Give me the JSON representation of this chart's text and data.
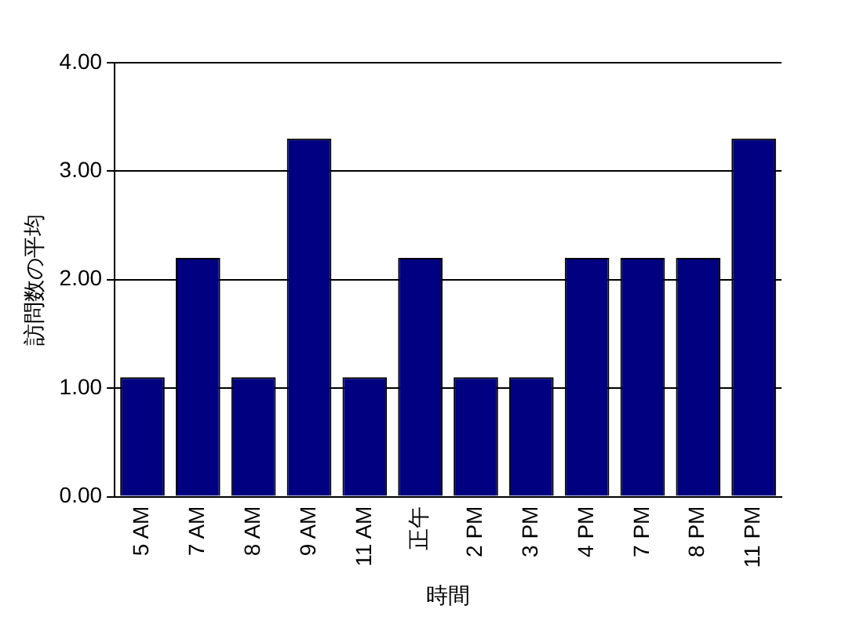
{
  "chart_data": {
    "type": "bar",
    "xlabel": "時間",
    "ylabel": "訪問数の平均",
    "categories": [
      "5 AM",
      "7 AM",
      "8 AM",
      "9 AM",
      "11 AM",
      "正午",
      "2 PM",
      "3 PM",
      "4 PM",
      "7 PM",
      "8 PM",
      "11 PM"
    ],
    "values": [
      1.1,
      2.2,
      1.1,
      3.3,
      1.1,
      2.2,
      1.1,
      1.1,
      2.2,
      2.2,
      2.2,
      3.3
    ],
    "color": "#000080",
    "ylim": [
      0,
      4
    ],
    "yticks": [
      {
        "value": 0,
        "label": "0.00"
      },
      {
        "value": 1,
        "label": "1.00"
      },
      {
        "value": 2,
        "label": "2.00"
      },
      {
        "value": 3,
        "label": "3.00"
      },
      {
        "value": 4,
        "label": "4.00"
      }
    ],
    "grid": "y",
    "legend": false
  }
}
